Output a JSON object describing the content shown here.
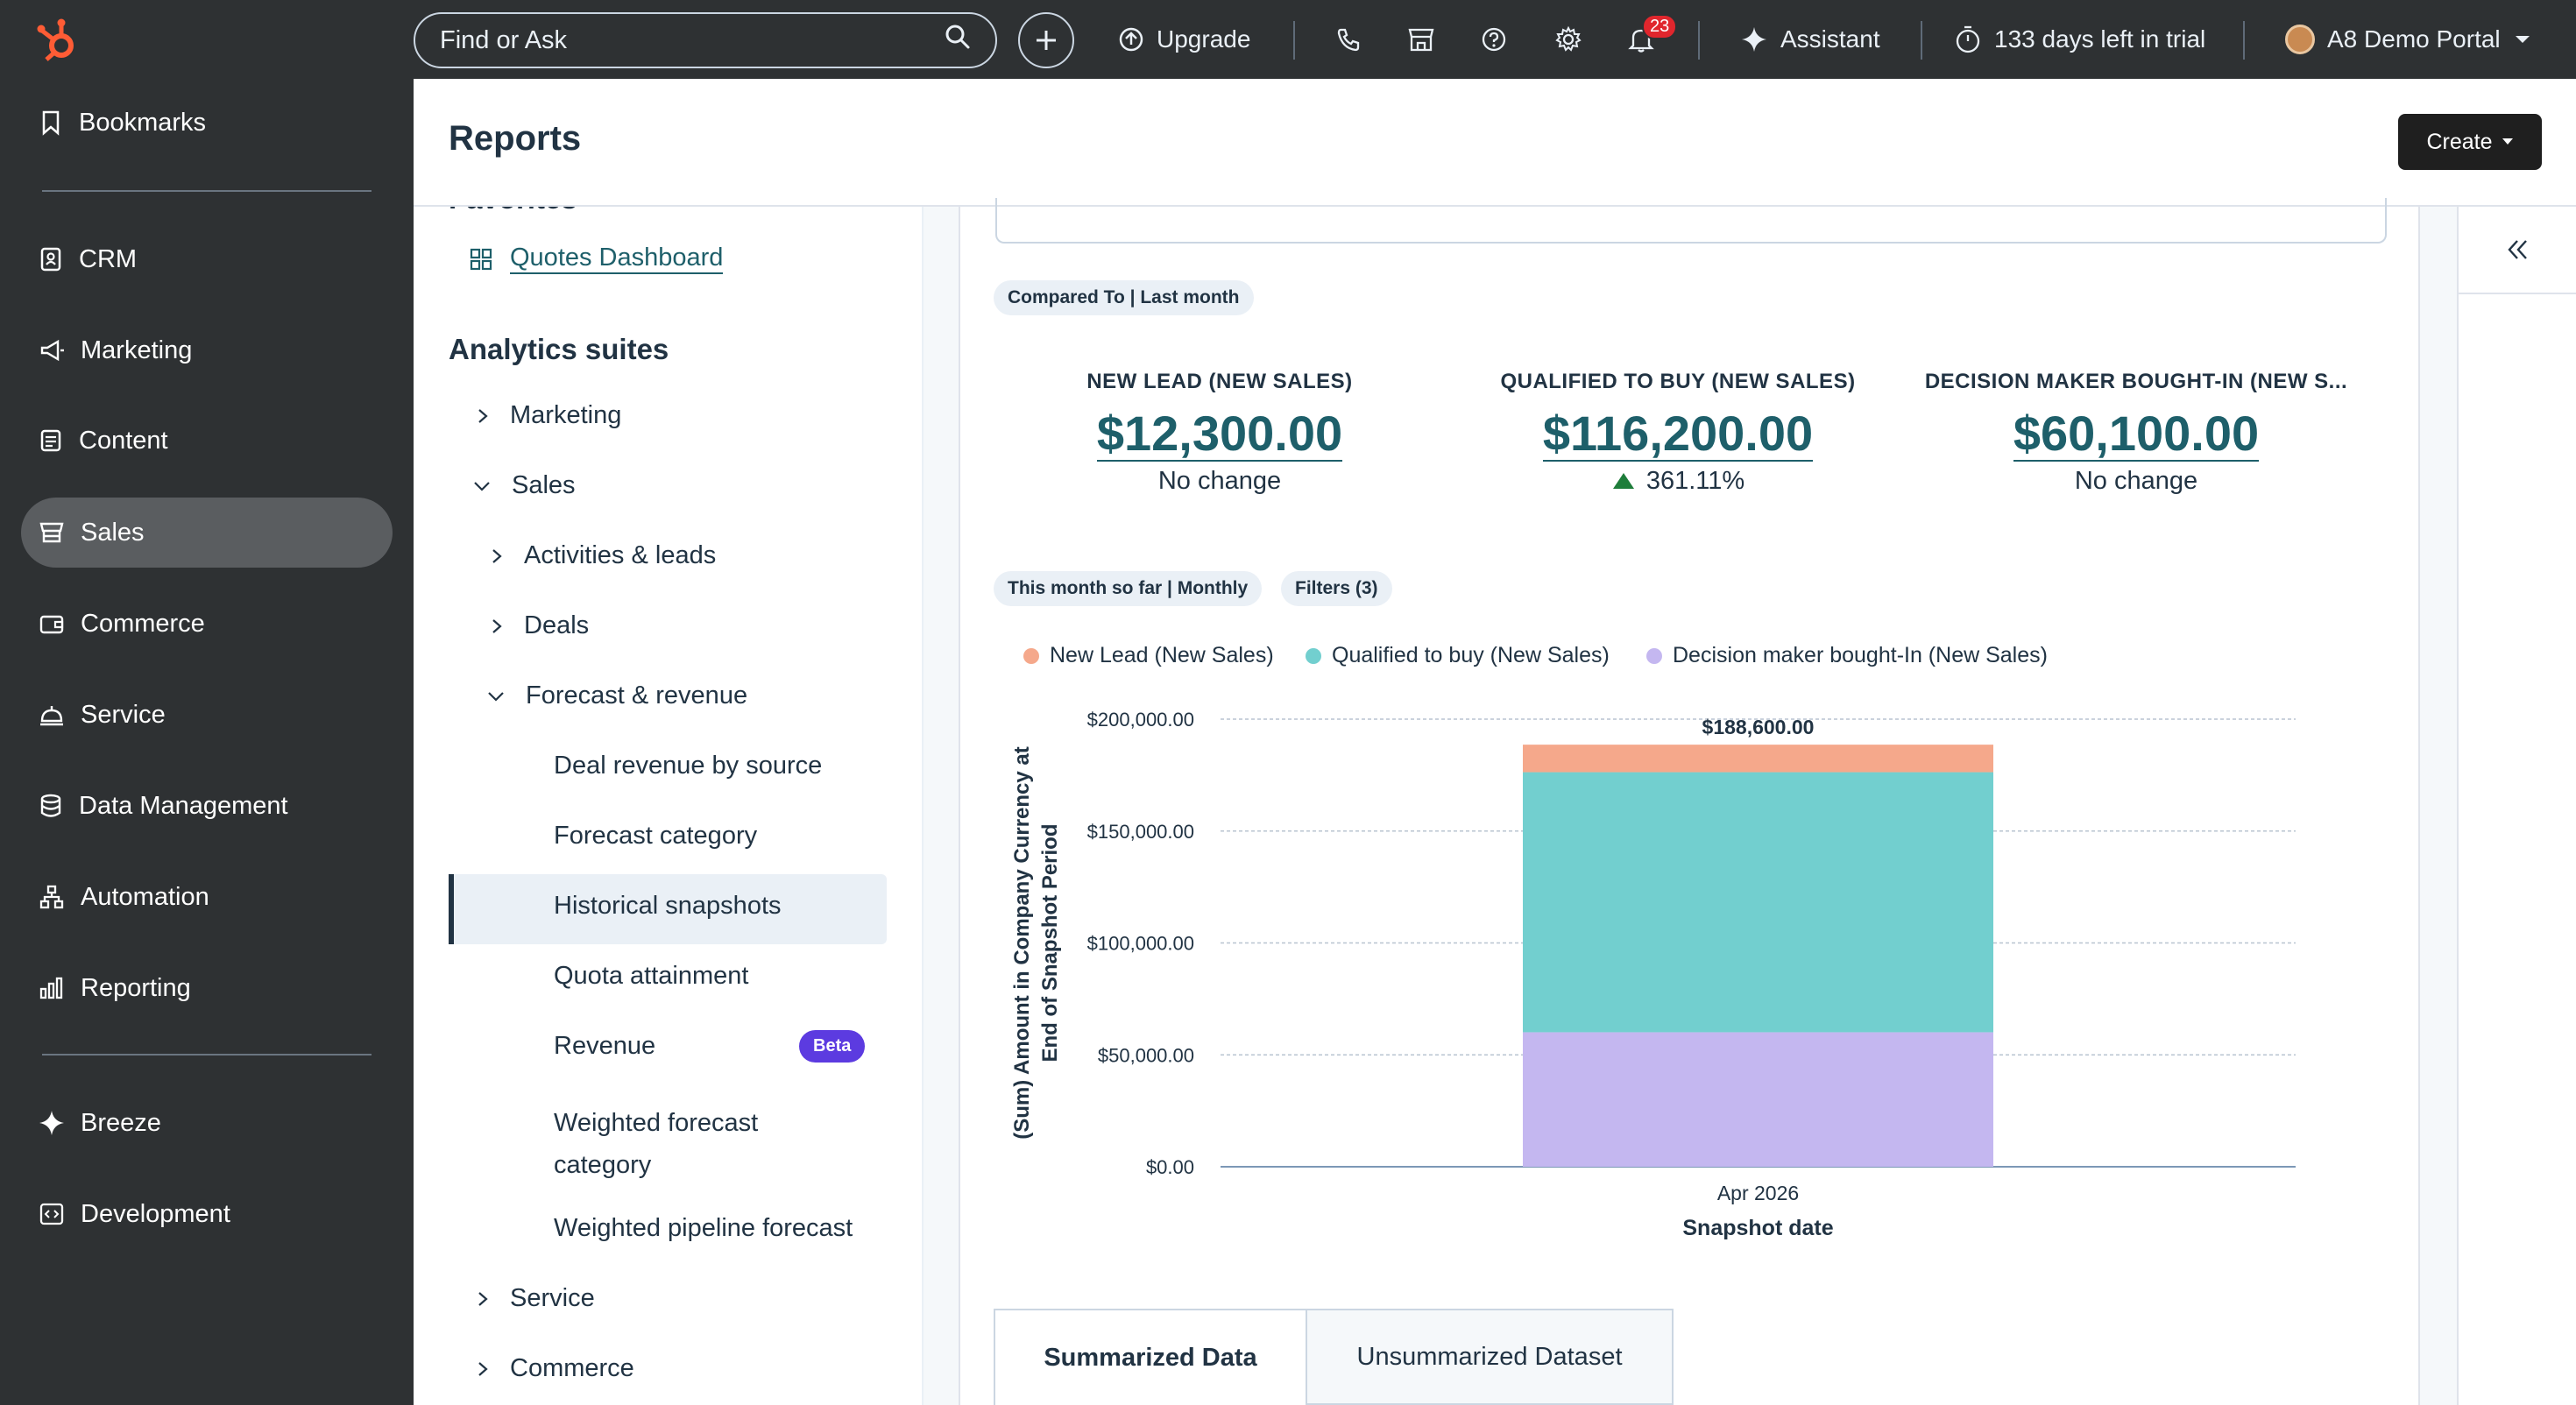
{
  "topbar": {
    "search_placeholder": "Find or Ask",
    "upgrade_label": "Upgrade",
    "notifications_count": "23",
    "assistant_label": "Assistant",
    "trial_label": "133 days left in trial",
    "portal_label": "A8 Demo Portal",
    "brand_color": "#ff5c35"
  },
  "sidebar": {
    "items": [
      {
        "label": "Bookmarks",
        "icon": "bookmark-icon"
      },
      {
        "label": "CRM",
        "icon": "crm-icon"
      },
      {
        "label": "Marketing",
        "icon": "megaphone-icon"
      },
      {
        "label": "Content",
        "icon": "content-icon"
      },
      {
        "label": "Sales",
        "icon": "sales-icon",
        "active": true
      },
      {
        "label": "Commerce",
        "icon": "wallet-icon"
      },
      {
        "label": "Service",
        "icon": "service-bell-icon"
      },
      {
        "label": "Data Management",
        "icon": "database-icon"
      },
      {
        "label": "Automation",
        "icon": "automation-icon"
      },
      {
        "label": "Reporting",
        "icon": "bar-chart-icon"
      },
      {
        "label": "Breeze",
        "icon": "sparkle-icon"
      },
      {
        "label": "Development",
        "icon": "code-icon"
      }
    ]
  },
  "header": {
    "title": "Reports",
    "create_label": "Create"
  },
  "tree": {
    "favorites_heading": "Favorites",
    "favorite_link": "Quotes Dashboard",
    "suites_heading": "Analytics suites",
    "marketing": "Marketing",
    "sales": "Sales",
    "activities": "Activities & leads",
    "deals": "Deals",
    "forecast": "Forecast & revenue",
    "deal_revenue": "Deal revenue by source",
    "forecast_category": "Forecast category",
    "historical": "Historical snapshots",
    "quota": "Quota attainment",
    "revenue": "Revenue",
    "beta": "Beta",
    "weighted_line1": "Weighted forecast",
    "weighted_line2": "category",
    "weighted_pipeline": "Weighted pipeline forecast",
    "service": "Service",
    "commerce": "Commerce"
  },
  "report": {
    "compared_to": "Compared To | Last month",
    "date_range": "This month so far | Monthly",
    "filters": "Filters (3)",
    "kpis": [
      {
        "label": "NEW LEAD (NEW SALES)",
        "value": "$12,300.00",
        "change": "No change"
      },
      {
        "label": "QUALIFIED TO BUY (NEW SALES)",
        "value": "$116,200.00",
        "change": "361.11%"
      },
      {
        "label": "DECISION MAKER BOUGHT-IN (NEW S...",
        "value": "$60,100.00",
        "change": "No change"
      }
    ],
    "tabs": [
      "Summarized Data",
      "Unsummarized Dataset"
    ]
  },
  "chart_data": {
    "type": "bar",
    "stacked": true,
    "categories": [
      "Apr 2026"
    ],
    "series": [
      {
        "name": "New Lead (New Sales)",
        "values": [
          12300
        ],
        "color": "#f5a88b"
      },
      {
        "name": "Qualified to buy (New Sales)",
        "values": [
          116200
        ],
        "color": "#72cfcf"
      },
      {
        "name": "Decision maker bought-In (New Sales)",
        "values": [
          60100
        ],
        "color": "#c4b7f0"
      }
    ],
    "stack_order": [
      "Decision maker bought-In (New Sales)",
      "Qualified to buy (New Sales)",
      "New Lead (New Sales)"
    ],
    "total_label": "$188,600.00",
    "xlabel": "Snapshot date",
    "ylabel_line1": "(Sum) Amount in Company Currency at",
    "ylabel_line2": "End of Snapshot Period",
    "yticks": [
      "$0.00",
      "$50,000.00",
      "$100,000.00",
      "$150,000.00",
      "$200,000.00"
    ],
    "ytick_values": [
      0,
      50000,
      100000,
      150000,
      200000
    ],
    "ylim": [
      0,
      200000
    ],
    "grid": true,
    "legend_position": "top-left"
  }
}
